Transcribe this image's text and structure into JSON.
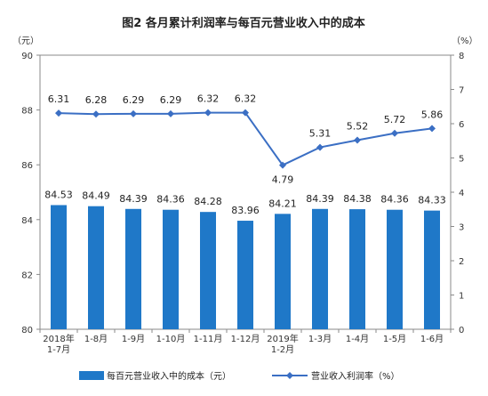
{
  "chart_data": {
    "type": "bar+line",
    "title": "图2  各月累计利润率与每百元营业收入中的成本",
    "left_unit": "（元）",
    "right_unit": "（%）",
    "categories": [
      [
        "2018年",
        "1-7月"
      ],
      [
        "1-8月"
      ],
      [
        "1-9月"
      ],
      [
        "1-10月"
      ],
      [
        "1-11月"
      ],
      [
        "1-12月"
      ],
      [
        "2019年",
        "1-2月"
      ],
      [
        "1-3月"
      ],
      [
        "1-4月"
      ],
      [
        "1-5月"
      ],
      [
        "1-6月"
      ]
    ],
    "series": [
      {
        "name": "每百元营业收入中的成本（元）",
        "type": "bar",
        "axis": "left",
        "color": "#1f78c8",
        "values": [
          84.53,
          84.49,
          84.39,
          84.36,
          84.28,
          83.96,
          84.21,
          84.39,
          84.38,
          84.36,
          84.33
        ],
        "labels": [
          "84.53",
          "84.49",
          "84.39",
          "84.36",
          "84.28",
          "83.96",
          "84.21",
          "84.39",
          "84.38",
          "84.36",
          "84.33"
        ]
      },
      {
        "name": "营业收入利润率（%）",
        "type": "line",
        "axis": "right",
        "color": "#3b6fc4",
        "values": [
          6.31,
          6.28,
          6.29,
          6.29,
          6.32,
          6.32,
          4.79,
          5.31,
          5.52,
          5.72,
          5.86
        ],
        "labels": [
          "6.31",
          "6.28",
          "6.29",
          "6.29",
          "6.32",
          "6.32",
          "4.79",
          "5.31",
          "5.52",
          "5.72",
          "5.86"
        ]
      }
    ],
    "left_axis": {
      "min": 80,
      "max": 90,
      "step": 2,
      "ticks": [
        "80",
        "82",
        "84",
        "86",
        "88",
        "90"
      ]
    },
    "right_axis": {
      "min": 0,
      "max": 8,
      "step": 1,
      "ticks": [
        "0",
        "1",
        "2",
        "3",
        "4",
        "5",
        "6",
        "7",
        "8"
      ]
    },
    "legend_position": "bottom"
  }
}
